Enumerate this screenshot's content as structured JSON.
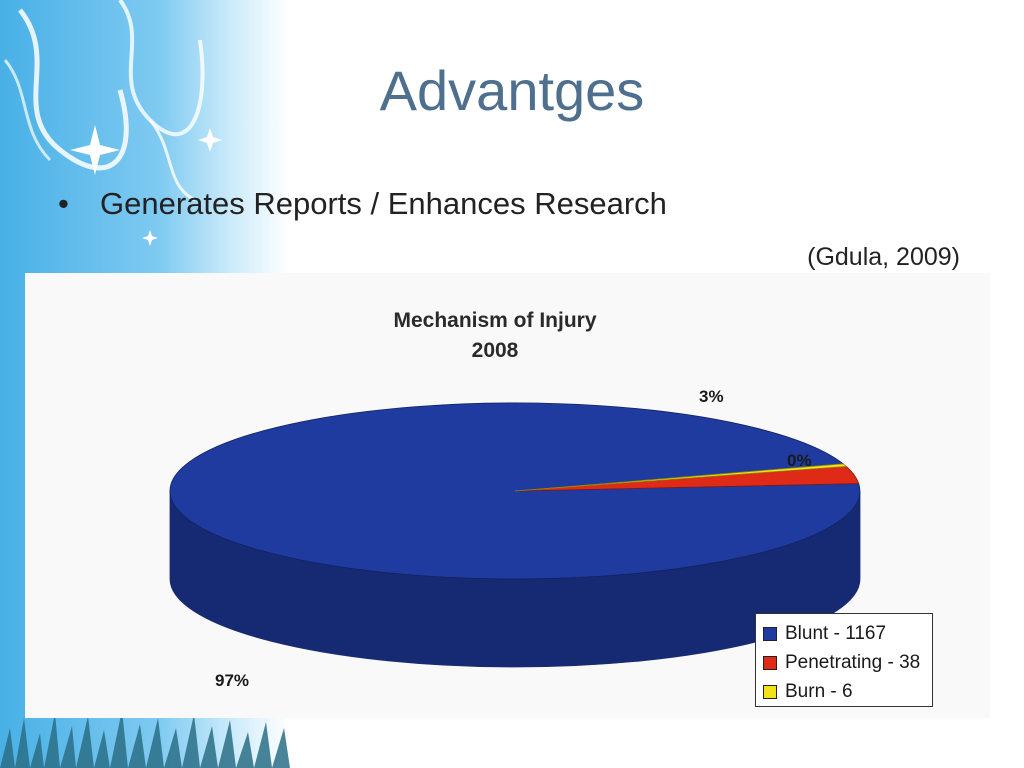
{
  "slide": {
    "title": "Advantges",
    "bullet_symbol": "•",
    "bullet": "Generates Reports / Enhances Research",
    "citation": "(Gdula, 2009)"
  },
  "chart_data": {
    "type": "pie",
    "title": "Mechanism of Injury",
    "subtitle": "2008",
    "slices": [
      {
        "label": "Blunt",
        "value": 1167,
        "percent_label": "97%",
        "color": "#1f3ba0",
        "legend": "Blunt - 1167"
      },
      {
        "label": "Penetrating",
        "value": 38,
        "percent_label": "3%",
        "color": "#e02a18",
        "legend": "Penetrating - 38"
      },
      {
        "label": "Burn",
        "value": 6,
        "percent_label": "0%",
        "color": "#f2e21a",
        "legend": "Burn - 6"
      }
    ],
    "legend_position": "bottom-right"
  }
}
